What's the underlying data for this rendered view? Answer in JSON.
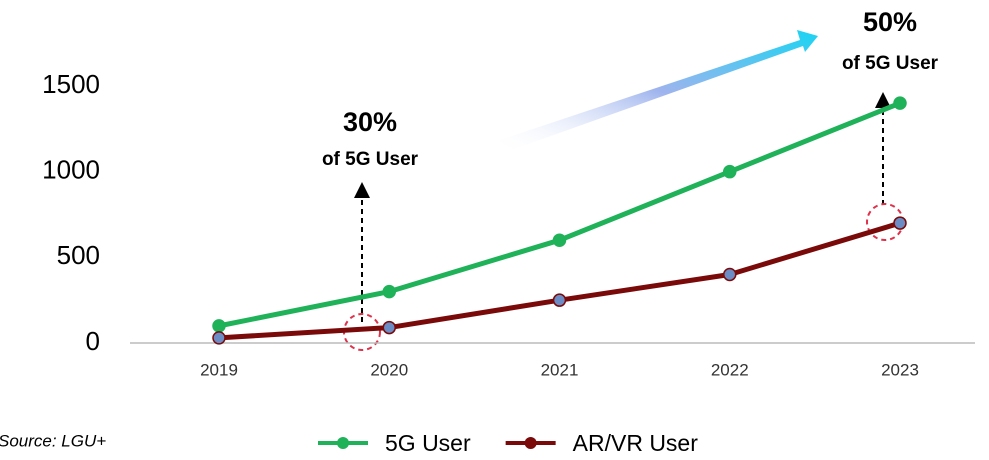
{
  "chart_data": {
    "type": "line",
    "categories": [
      "2019",
      "2020",
      "2021",
      "2022",
      "2023"
    ],
    "series": [
      {
        "name": "5G User",
        "color": "#1fb259",
        "marker_color": "#1fb259",
        "values": [
          100,
          300,
          600,
          1000,
          1400
        ]
      },
      {
        "name": "AR/VR User",
        "color": "#7a0a0a",
        "marker_color": "#6b8cc4",
        "values": [
          30,
          90,
          250,
          400,
          700
        ]
      }
    ],
    "ylim": [
      0,
      1500
    ],
    "yticks": [
      0,
      500,
      1000,
      1500
    ],
    "grid": false,
    "legend": "bottom",
    "annotations": [
      "30%",
      "of 5G User",
      "50%",
      "of 5G User"
    ],
    "source": "Source: LGU+"
  }
}
